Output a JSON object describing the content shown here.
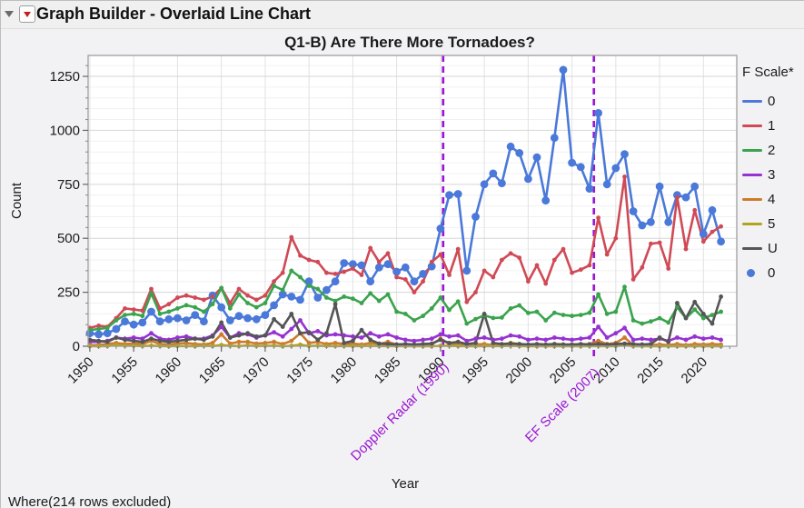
{
  "window": {
    "title": "Graph Builder - Overlaid Line Chart"
  },
  "header_icons": {
    "disclosure": "collapse-triangle",
    "menu": "red-triangle-menu"
  },
  "footer": {
    "text": "Where(214 rows excluded)"
  },
  "legend": {
    "title": "F Scale*",
    "items": [
      {
        "label": "0",
        "color": "#4a79d9",
        "type": "line"
      },
      {
        "label": "1",
        "color": "#cf4a56",
        "type": "line"
      },
      {
        "label": "2",
        "color": "#3aa34d",
        "type": "line"
      },
      {
        "label": "3",
        "color": "#9632d2",
        "type": "line"
      },
      {
        "label": "4",
        "color": "#cd7a2d",
        "type": "line"
      },
      {
        "label": "5",
        "color": "#b2a21f",
        "type": "line"
      },
      {
        "label": "U",
        "color": "#555555",
        "type": "line"
      },
      {
        "label": "0",
        "color": "#4a79d9",
        "type": "point"
      }
    ]
  },
  "chart_data": {
    "type": "line",
    "title": "Q1-B) Are There More Tornadoes?",
    "xlabel": "Year",
    "ylabel": "Count",
    "xlim": [
      1949.8,
      2023.8
    ],
    "ylim": [
      0,
      1347
    ],
    "grid": true,
    "legend_position": "right",
    "x_major_ticks": [
      1950,
      1955,
      1960,
      1965,
      1970,
      1975,
      1980,
      1985,
      1990,
      1995,
      2000,
      2005,
      2010,
      2015,
      2020
    ],
    "y_major_ticks": [
      0,
      250,
      500,
      750,
      1000,
      1250
    ],
    "y_minor_step": 50,
    "reference_lines": [
      {
        "x": 1990.3,
        "label": "Doppler Radar (1990)",
        "color": "#9b17d3"
      },
      {
        "x": 2007.5,
        "label": "EF Scale (2007)",
        "color": "#9b17d3"
      }
    ],
    "x": [
      1950,
      1951,
      1952,
      1953,
      1954,
      1955,
      1956,
      1957,
      1958,
      1959,
      1960,
      1961,
      1962,
      1963,
      1964,
      1965,
      1966,
      1967,
      1968,
      1969,
      1970,
      1971,
      1972,
      1973,
      1974,
      1975,
      1976,
      1977,
      1978,
      1979,
      1980,
      1981,
      1982,
      1983,
      1984,
      1985,
      1986,
      1987,
      1988,
      1989,
      1990,
      1991,
      1992,
      1993,
      1994,
      1995,
      1996,
      1997,
      1998,
      1999,
      2000,
      2001,
      2002,
      2003,
      2004,
      2005,
      2006,
      2007,
      2008,
      2009,
      2010,
      2011,
      2012,
      2013,
      2014,
      2015,
      2016,
      2017,
      2018,
      2019,
      2020,
      2021,
      2022
    ],
    "series": [
      {
        "name": "0",
        "color": "#4a79d9",
        "markers": "large",
        "values": [
          60,
          55,
          60,
          80,
          115,
          100,
          110,
          160,
          115,
          125,
          130,
          120,
          145,
          115,
          235,
          180,
          120,
          140,
          130,
          125,
          145,
          190,
          240,
          230,
          215,
          300,
          225,
          260,
          300,
          385,
          380,
          375,
          300,
          365,
          380,
          345,
          365,
          300,
          335,
          370,
          545,
          700,
          705,
          350,
          600,
          750,
          800,
          755,
          925,
          895,
          775,
          875,
          675,
          965,
          1280,
          850,
          830,
          730,
          1080,
          750,
          825,
          890,
          625,
          560,
          575,
          740,
          575,
          700,
          690,
          740,
          520,
          630,
          485
        ]
      },
      {
        "name": "1",
        "color": "#cf4a56",
        "markers": "small",
        "values": [
          85,
          95,
          90,
          130,
          175,
          170,
          165,
          265,
          175,
          195,
          225,
          235,
          225,
          215,
          230,
          270,
          200,
          265,
          235,
          215,
          235,
          300,
          340,
          505,
          420,
          400,
          390,
          340,
          335,
          345,
          360,
          330,
          455,
          390,
          430,
          320,
          310,
          250,
          300,
          390,
          425,
          330,
          450,
          205,
          250,
          350,
          320,
          400,
          430,
          410,
          300,
          375,
          290,
          400,
          450,
          340,
          355,
          375,
          595,
          425,
          500,
          785,
          310,
          365,
          475,
          480,
          360,
          690,
          450,
          630,
          485,
          530,
          555
        ]
      },
      {
        "name": "2",
        "color": "#3aa34d",
        "markers": "small",
        "values": [
          75,
          80,
          85,
          120,
          145,
          150,
          140,
          245,
          150,
          160,
          175,
          190,
          180,
          160,
          195,
          270,
          175,
          240,
          200,
          180,
          200,
          280,
          260,
          350,
          320,
          280,
          265,
          225,
          210,
          230,
          220,
          200,
          245,
          210,
          240,
          160,
          150,
          120,
          140,
          175,
          225,
          168,
          207,
          105,
          126,
          143,
          131,
          133,
          175,
          189,
          154,
          160,
          120,
          155,
          145,
          140,
          145,
          155,
          240,
          150,
          160,
          275,
          120,
          105,
          115,
          130,
          110,
          180,
          130,
          170,
          130,
          145,
          160
        ]
      },
      {
        "name": "3",
        "color": "#9632d2",
        "markers": "small",
        "values": [
          20,
          20,
          25,
          40,
          35,
          40,
          35,
          60,
          35,
          30,
          40,
          45,
          35,
          35,
          50,
          90,
          40,
          60,
          55,
          40,
          50,
          65,
          45,
          80,
          120,
          60,
          70,
          50,
          55,
          50,
          45,
          40,
          60,
          45,
          55,
          40,
          30,
          25,
          30,
          35,
          55,
          45,
          50,
          25,
          35,
          40,
          30,
          35,
          50,
          45,
          30,
          35,
          30,
          40,
          35,
          30,
          35,
          40,
          90,
          40,
          60,
          85,
          30,
          35,
          30,
          35,
          25,
          40,
          30,
          45,
          35,
          40,
          30
        ]
      },
      {
        "name": "4",
        "color": "#cd7a2d",
        "markers": "small",
        "values": [
          5,
          5,
          10,
          15,
          10,
          12,
          10,
          25,
          10,
          8,
          12,
          15,
          10,
          8,
          15,
          55,
          12,
          20,
          20,
          12,
          15,
          20,
          10,
          25,
          60,
          15,
          20,
          10,
          15,
          10,
          12,
          8,
          15,
          10,
          20,
          8,
          5,
          5,
          5,
          8,
          35,
          10,
          12,
          5,
          8,
          10,
          5,
          8,
          15,
          10,
          5,
          8,
          5,
          10,
          8,
          5,
          8,
          10,
          25,
          10,
          15,
          40,
          5,
          8,
          5,
          8,
          5,
          10,
          5,
          10,
          8,
          10,
          8
        ]
      },
      {
        "name": "5",
        "color": "#b2a21f",
        "markers": "small",
        "values": [
          0,
          0,
          1,
          6,
          2,
          2,
          1,
          3,
          1,
          0,
          1,
          1,
          0,
          2,
          1,
          6,
          2,
          1,
          4,
          1,
          2,
          3,
          0,
          2,
          7,
          1,
          3,
          1,
          1,
          1,
          1,
          1,
          2,
          1,
          1,
          1,
          0,
          1,
          0,
          0,
          2,
          2,
          1,
          0,
          0,
          1,
          1,
          1,
          2,
          1,
          0,
          0,
          0,
          0,
          0,
          1,
          0,
          1,
          1,
          0,
          1,
          6,
          0,
          1,
          0,
          0,
          0,
          0,
          0,
          0,
          0,
          0,
          0
        ]
      },
      {
        "name": "U",
        "color": "#555555",
        "markers": "small",
        "values": [
          30,
          25,
          20,
          40,
          30,
          25,
          20,
          35,
          25,
          20,
          25,
          30,
          35,
          30,
          45,
          110,
          40,
          50,
          60,
          45,
          50,
          125,
          90,
          150,
          60,
          65,
          30,
          60,
          195,
          15,
          25,
          75,
          30,
          12,
          10,
          8,
          10,
          8,
          10,
          12,
          30,
          15,
          20,
          10,
          15,
          150,
          15,
          10,
          12,
          10,
          8,
          10,
          8,
          10,
          8,
          8,
          10,
          8,
          10,
          8,
          10,
          12,
          10,
          8,
          10,
          40,
          20,
          200,
          130,
          205,
          150,
          105,
          230
        ]
      }
    ]
  }
}
